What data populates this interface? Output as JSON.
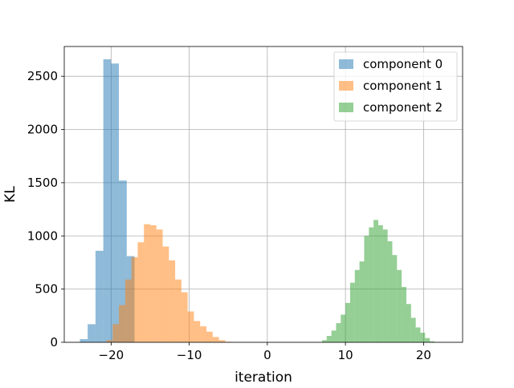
{
  "chart_data": {
    "type": "histogram",
    "title": "",
    "xlabel": "iteration",
    "ylabel": "KL",
    "xlim": [
      -26,
      25
    ],
    "ylim": [
      0,
      2780
    ],
    "bin_width": 1,
    "xticks": [
      -20,
      -10,
      0,
      10,
      20
    ],
    "xtick_labels": [
      "−20",
      "−10",
      "0",
      "10",
      "20"
    ],
    "yticks": [
      0,
      500,
      1000,
      1500,
      2000,
      2500
    ],
    "ytick_labels": [
      "0",
      "500",
      "1000",
      "1500",
      "2000",
      "2500"
    ],
    "grid": true,
    "alpha": 0.5,
    "legend_position": "top-right",
    "series": [
      {
        "name": "component 0",
        "color": "#1f77b4",
        "bins": [
          {
            "x0": -24,
            "x1": -23,
            "y": 30
          },
          {
            "x0": -23,
            "x1": -22,
            "y": 170
          },
          {
            "x0": -22,
            "x1": -21,
            "y": 860
          },
          {
            "x0": -21,
            "x1": -20,
            "y": 2660
          },
          {
            "x0": -20,
            "x1": -19,
            "y": 2620
          },
          {
            "x0": -19,
            "x1": -18,
            "y": 1520
          },
          {
            "x0": -18,
            "x1": -17,
            "y": 810
          }
        ]
      },
      {
        "name": "component 1",
        "color": "#ff7f0e",
        "bins": [
          {
            "x0": -20.6,
            "x1": -19.8,
            "y": 20
          },
          {
            "x0": -19.8,
            "x1": -19.0,
            "y": 170
          },
          {
            "x0": -19.0,
            "x1": -18.2,
            "y": 350
          },
          {
            "x0": -18.2,
            "x1": -17.4,
            "y": 590
          },
          {
            "x0": -17.4,
            "x1": -16.6,
            "y": 800
          },
          {
            "x0": -16.6,
            "x1": -15.8,
            "y": 940
          },
          {
            "x0": -15.8,
            "x1": -15.0,
            "y": 1110
          },
          {
            "x0": -15.0,
            "x1": -14.2,
            "y": 1100
          },
          {
            "x0": -14.2,
            "x1": -13.4,
            "y": 1060
          },
          {
            "x0": -13.4,
            "x1": -12.6,
            "y": 900
          },
          {
            "x0": -12.6,
            "x1": -11.8,
            "y": 770
          },
          {
            "x0": -11.8,
            "x1": -11.0,
            "y": 590
          },
          {
            "x0": -11.0,
            "x1": -10.2,
            "y": 470
          },
          {
            "x0": -10.2,
            "x1": -9.4,
            "y": 290
          },
          {
            "x0": -9.4,
            "x1": -8.6,
            "y": 200
          },
          {
            "x0": -8.6,
            "x1": -7.8,
            "y": 150
          },
          {
            "x0": -7.8,
            "x1": -7.0,
            "y": 100
          },
          {
            "x0": -7.0,
            "x1": -6.2,
            "y": 50
          },
          {
            "x0": -6.2,
            "x1": -5.4,
            "y": 20
          },
          {
            "x0": -5.4,
            "x1": -4.6,
            "y": 5
          }
        ]
      },
      {
        "name": "component 2",
        "color": "#2ca02c",
        "bins": [
          {
            "x0": 7.0,
            "x1": 7.6,
            "y": 20
          },
          {
            "x0": 7.6,
            "x1": 8.2,
            "y": 60
          },
          {
            "x0": 8.2,
            "x1": 8.8,
            "y": 110
          },
          {
            "x0": 8.8,
            "x1": 9.4,
            "y": 180
          },
          {
            "x0": 9.4,
            "x1": 10.0,
            "y": 260
          },
          {
            "x0": 10.0,
            "x1": 10.6,
            "y": 370
          },
          {
            "x0": 10.6,
            "x1": 11.2,
            "y": 560
          },
          {
            "x0": 11.2,
            "x1": 11.8,
            "y": 680
          },
          {
            "x0": 11.8,
            "x1": 12.4,
            "y": 760
          },
          {
            "x0": 12.4,
            "x1": 13.0,
            "y": 1000
          },
          {
            "x0": 13.0,
            "x1": 13.6,
            "y": 1080
          },
          {
            "x0": 13.6,
            "x1": 14.2,
            "y": 1150
          },
          {
            "x0": 14.2,
            "x1": 14.8,
            "y": 1100
          },
          {
            "x0": 14.8,
            "x1": 15.4,
            "y": 1060
          },
          {
            "x0": 15.4,
            "x1": 16.0,
            "y": 950
          },
          {
            "x0": 16.0,
            "x1": 16.6,
            "y": 820
          },
          {
            "x0": 16.6,
            "x1": 17.2,
            "y": 680
          },
          {
            "x0": 17.2,
            "x1": 17.8,
            "y": 520
          },
          {
            "x0": 17.8,
            "x1": 18.4,
            "y": 360
          },
          {
            "x0": 18.4,
            "x1": 19.0,
            "y": 230
          },
          {
            "x0": 19.0,
            "x1": 19.6,
            "y": 140
          },
          {
            "x0": 19.6,
            "x1": 20.2,
            "y": 90
          },
          {
            "x0": 20.2,
            "x1": 20.8,
            "y": 40
          },
          {
            "x0": 20.8,
            "x1": 21.4,
            "y": 10
          }
        ]
      }
    ]
  }
}
